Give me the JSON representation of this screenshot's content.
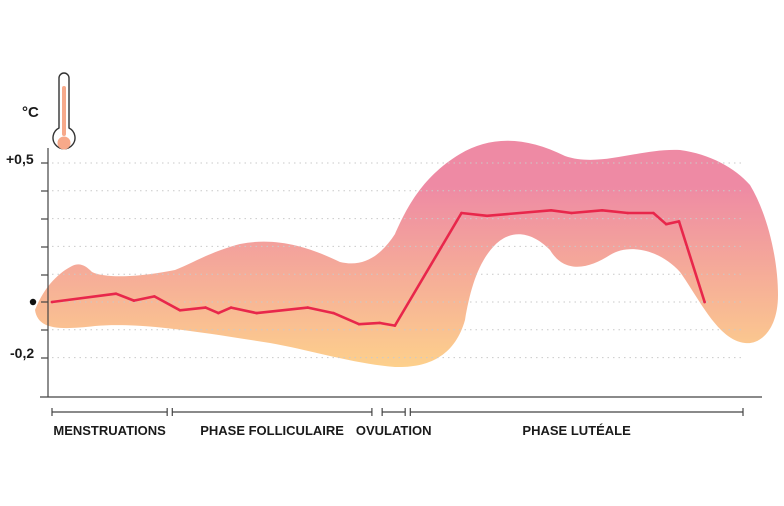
{
  "chart_data": {
    "type": "line",
    "title": "",
    "ylabel": "°C",
    "xlabel": "",
    "y_tick_labels": [
      "+0,5",
      "-0,2"
    ],
    "y_tick_values": [
      0.5,
      -0.2
    ],
    "ylim": [
      -0.37,
      0.53
    ],
    "x_range": [
      1,
      28
    ],
    "grid": "dotted-horizontal",
    "colors": {
      "line": "#e8274b",
      "band_top": "#ee8aa4",
      "band_bottom": "#fdd08c",
      "axis": "#444444",
      "text": "#1a1a1a",
      "thermometer_fill": "#f7a98a"
    },
    "icons": [
      "thermometer-icon"
    ],
    "phases": [
      {
        "label": "MENSTRUATIONS",
        "start": 1,
        "end": 5.5
      },
      {
        "label": "PHASE FOLLICULAIRE",
        "start": 5.7,
        "end": 13.5
      },
      {
        "label": "OVULATION",
        "start": 13.9,
        "end": 14.8
      },
      {
        "label": "PHASE LUTÉALE",
        "start": 15,
        "end": 28
      }
    ],
    "x": [
      1,
      3.5,
      4.2,
      5,
      6,
      7,
      7.5,
      8,
      9,
      11,
      12,
      13,
      13.8,
      14.4,
      17,
      18,
      20.5,
      21.3,
      22.5,
      23.5,
      24.5,
      25,
      25.5,
      26.5
    ],
    "values": [
      0.0,
      0.03,
      0.005,
      0.02,
      -0.03,
      -0.02,
      -0.04,
      -0.02,
      -0.04,
      -0.02,
      -0.04,
      -0.08,
      -0.075,
      -0.085,
      0.32,
      0.31,
      0.33,
      0.32,
      0.33,
      0.32,
      0.32,
      0.28,
      0.29,
      0.0
    ]
  }
}
